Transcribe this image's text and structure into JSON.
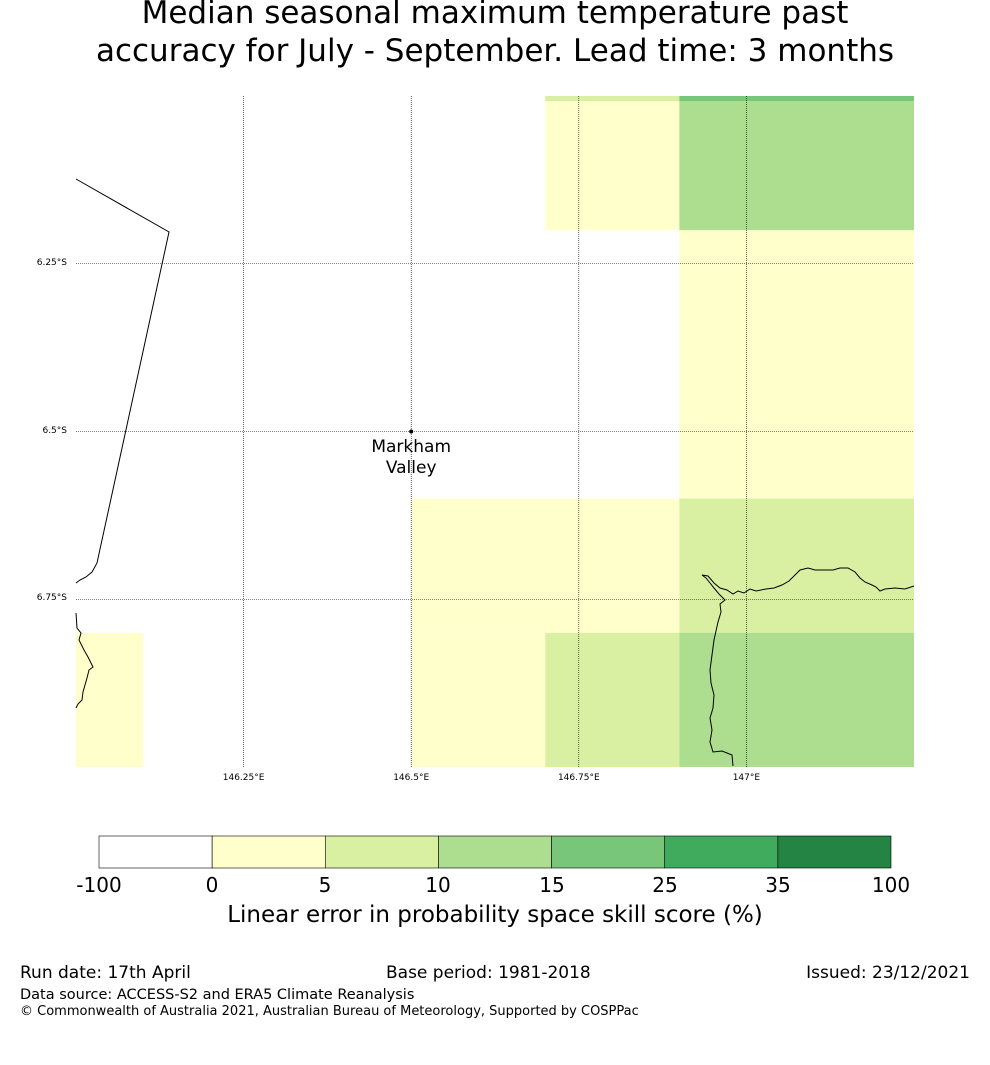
{
  "title_lines": [
    "Median seasonal maximum temperature past",
    "accuracy for July - September. Lead time: 3 months"
  ],
  "map": {
    "lat_labels": [
      "6.25°S",
      "6.5°S",
      "6.75°S"
    ],
    "lat_values": [
      -6.25,
      -6.5,
      -6.75
    ],
    "lon_labels": [
      "146.25°E",
      "146.5°E",
      "146.75°E",
      "147°E"
    ],
    "lon_values": [
      146.25,
      146.5,
      146.75,
      147.0
    ],
    "extent": {
      "lon_min": 146.0,
      "lon_max": 147.25,
      "lat_min": -7.0,
      "lat_max": -6.0
    },
    "place": {
      "name_line1": "Markham",
      "name_line2": "Valley",
      "lon": 146.5,
      "lat": -6.5
    },
    "cells": [
      {
        "lon0": 146.7,
        "lon1": 146.9,
        "lat0": -6.2,
        "lat1": -6.0,
        "cat": 1
      },
      {
        "lon0": 146.9,
        "lon1": 147.25,
        "lat0": -6.2,
        "lat1": -6.0,
        "cat": 3
      },
      {
        "lon0": 146.9,
        "lon1": 147.25,
        "lat0": -6.6,
        "lat1": -6.2,
        "cat": 1
      },
      {
        "lon0": 146.5,
        "lon1": 146.9,
        "lat0": -6.8,
        "lat1": -6.6,
        "cat": 1
      },
      {
        "lon0": 146.9,
        "lon1": 147.25,
        "lat0": -6.8,
        "lat1": -6.6,
        "cat": 2
      },
      {
        "lon0": 146.5,
        "lon1": 146.7,
        "lat0": -7.0,
        "lat1": -6.8,
        "cat": 1
      },
      {
        "lon0": 146.7,
        "lon1": 146.9,
        "lat0": -7.0,
        "lat1": -6.8,
        "cat": 2
      },
      {
        "lon0": 146.9,
        "lon1": 147.25,
        "lat0": -7.0,
        "lat1": -6.8,
        "cat": 3
      },
      {
        "lon0": 146.0,
        "lon1": 146.1,
        "lat0": -7.0,
        "lat1": -6.8,
        "cat": 1
      }
    ]
  },
  "colorbar": {
    "ticks": [
      "-100",
      "0",
      "5",
      "10",
      "15",
      "25",
      "35",
      "100"
    ],
    "colors": [
      "#ffffff",
      "#ffffcc",
      "#d9f0a3",
      "#addd8e",
      "#78c679",
      "#41ab5d",
      "#238443"
    ],
    "label": "Linear error in probability space skill score (%)"
  },
  "footer": {
    "run_date": "Run date: 17th April",
    "base_period": "Base period: 1981-2018",
    "issued": "Issued: 23/12/2021",
    "data_source": "Data source: ACCESS-S2 and ERA5 Climate Reanalysis",
    "copyright": "© Commonwealth of Australia 2021, Australian Bureau of Meteorology, Supported by COSPPac"
  }
}
